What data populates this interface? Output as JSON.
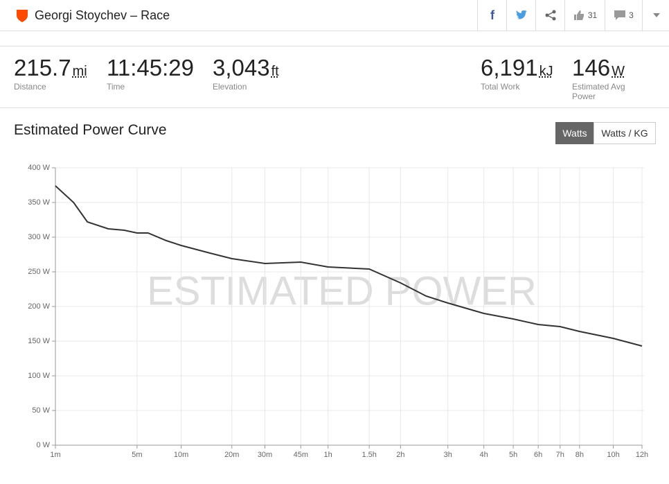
{
  "header": {
    "title": "Georgi Stoychev – Race",
    "kudos": "31",
    "comments": "3"
  },
  "stats": [
    {
      "value": "215.7",
      "unit": "mi",
      "label": "Distance"
    },
    {
      "value": "11:45:29",
      "label": "Time"
    },
    {
      "value": "3,043",
      "unit": "ft",
      "label": "Elevation"
    },
    {
      "value": "6,191",
      "unit": "kJ",
      "label": "Total Work"
    },
    {
      "value": "146",
      "unit": "W",
      "label": "Estimated Avg Power"
    }
  ],
  "section": {
    "title": "Estimated Power Curve",
    "buttons": [
      "Watts",
      "Watts / KG"
    ]
  },
  "chart_data": {
    "type": "line",
    "watermark": "ESTIMATED POWER",
    "xscale": "pow",
    "xexponent": 0.2,
    "color": "#333333",
    "grid": true,
    "x": [
      60,
      90,
      120,
      180,
      240,
      300,
      360,
      480,
      600,
      900,
      1200,
      1800,
      2700,
      3600,
      5400,
      7200,
      9000,
      10800,
      14400,
      18000,
      21600,
      25200,
      28800,
      36000,
      43200
    ],
    "values": [
      374,
      350,
      322,
      312,
      310,
      306,
      306,
      295,
      288,
      277,
      269,
      262,
      264,
      257,
      254,
      234,
      215,
      205,
      190,
      182,
      174,
      171,
      164,
      154,
      143
    ],
    "xlim": [
      60,
      43200
    ],
    "xticks": [
      {
        "value": 60,
        "label": "1m"
      },
      {
        "value": 300,
        "label": "5m"
      },
      {
        "value": 600,
        "label": "10m"
      },
      {
        "value": 1200,
        "label": "20m"
      },
      {
        "value": 1800,
        "label": "30m"
      },
      {
        "value": 2700,
        "label": "45m"
      },
      {
        "value": 3600,
        "label": "1h"
      },
      {
        "value": 5400,
        "label": "1.5h"
      },
      {
        "value": 7200,
        "label": "2h"
      },
      {
        "value": 10800,
        "label": "3h"
      },
      {
        "value": 14400,
        "label": "4h"
      },
      {
        "value": 18000,
        "label": "5h"
      },
      {
        "value": 21600,
        "label": "6h"
      },
      {
        "value": 25200,
        "label": "7h"
      },
      {
        "value": 28800,
        "label": "8h"
      },
      {
        "value": 36000,
        "label": "10h"
      },
      {
        "value": 43200,
        "label": "12h"
      }
    ],
    "ylim": [
      0,
      400
    ],
    "yticks": [
      {
        "value": 0,
        "label": "0 W"
      },
      {
        "value": 50,
        "label": "50 W"
      },
      {
        "value": 100,
        "label": "100 W"
      },
      {
        "value": 150,
        "label": "150 W"
      },
      {
        "value": 200,
        "label": "200 W"
      },
      {
        "value": 250,
        "label": "250 W"
      },
      {
        "value": 300,
        "label": "300 W"
      },
      {
        "value": 350,
        "label": "350 W"
      },
      {
        "value": 400,
        "label": "400 W"
      }
    ]
  }
}
